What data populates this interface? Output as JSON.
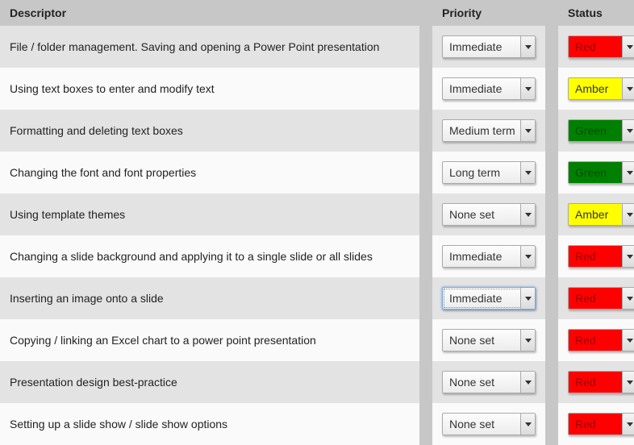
{
  "columns": {
    "descriptor": "Descriptor",
    "priority": "Priority",
    "status": "Status"
  },
  "status_styles": {
    "Red": {
      "bg": "#ff0000",
      "fg": "#a00000"
    },
    "Amber": {
      "bg": "#ffff00",
      "fg": "#333333"
    },
    "Green": {
      "bg": "#008000",
      "fg": "#004d00"
    }
  },
  "priority_options": [
    "Immediate",
    "Medium term",
    "Long term",
    "None set"
  ],
  "status_options": [
    "Red",
    "Amber",
    "Green"
  ],
  "rows": [
    {
      "descriptor": "File / folder management. Saving and opening a Power Point presentation",
      "priority": "Immediate",
      "status": "Red",
      "focused": false
    },
    {
      "descriptor": "Using text boxes to enter and modify text",
      "priority": "Immediate",
      "status": "Amber",
      "focused": false
    },
    {
      "descriptor": "Formatting and deleting text boxes",
      "priority": "Medium term",
      "status": "Green",
      "focused": false
    },
    {
      "descriptor": "Changing the font and font properties",
      "priority": "Long term",
      "status": "Green",
      "focused": false
    },
    {
      "descriptor": "Using template themes",
      "priority": "None set",
      "status": "Amber",
      "focused": false
    },
    {
      "descriptor": "Changing a slide background and applying it to a single slide or all slides",
      "priority": "Immediate",
      "status": "Red",
      "focused": false
    },
    {
      "descriptor": "Inserting an image onto a slide",
      "priority": "Immediate",
      "status": "Red",
      "focused": true
    },
    {
      "descriptor": "Copying / linking an Excel chart to a power point presentation",
      "priority": "None set",
      "status": "Red",
      "focused": false
    },
    {
      "descriptor": "Presentation design best-practice",
      "priority": "None set",
      "status": "Red",
      "focused": false
    },
    {
      "descriptor": "Setting up a slide show / slide show options",
      "priority": "None set",
      "status": "Red",
      "focused": false
    }
  ]
}
